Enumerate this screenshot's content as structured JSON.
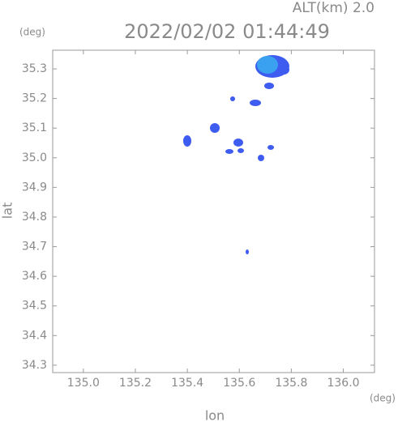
{
  "chart_data": {
    "type": "map",
    "annotation": "ALT(km) 2.0",
    "title": "2022/02/02 01:44:49",
    "y_unit": "(deg)",
    "x_unit": "(deg)",
    "ylabel": "lat",
    "xlabel": "lon",
    "xlim": [
      134.882,
      136.12
    ],
    "ylim": [
      34.275,
      35.363
    ],
    "xticks": [
      {
        "value": 135,
        "label": "135.0"
      },
      135.2,
      135.4,
      135.6,
      135.8,
      {
        "value": 136,
        "label": "136.0"
      }
    ],
    "yticks": [
      34.3,
      34.4,
      34.5,
      34.6,
      34.7,
      34.8,
      34.9,
      {
        "value": 35,
        "label": "35.0"
      },
      35.1,
      35.2,
      35.3
    ]
  }
}
